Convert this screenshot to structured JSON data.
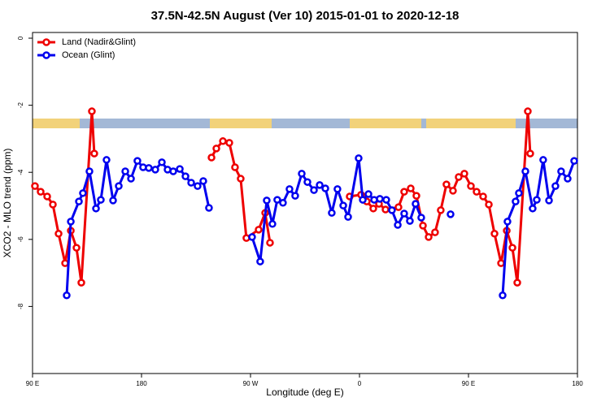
{
  "chart_data": {
    "type": "line",
    "title": "37.5N-42.5N August (Ver 10)   2015-01-01 to 2020-12-18",
    "xlabel": "Longitude (deg E)",
    "ylabel": "XCO2 - MLO trend (ppm)",
    "xlim": [
      90,
      540
    ],
    "ylim": [
      -10,
      0.17
    ],
    "xticks": [
      {
        "value": 90,
        "label": "90 E"
      },
      180,
      {
        "value": 270,
        "label": "90 W"
      },
      {
        "value": 360,
        "label": "0"
      },
      {
        "value": 450,
        "label": "90 E"
      },
      {
        "value": 540,
        "label": "180"
      }
    ],
    "yticks": [
      0,
      -2,
      -4,
      -6,
      -8
    ],
    "grid": false,
    "legend": "top-left",
    "series": [
      {
        "name": "Land (Nadir&Glint)",
        "color": "#ee0000",
        "x": [
          92.0,
          96.7,
          102.1,
          106.8,
          111.5,
          116.9,
          121.6,
          126.3,
          130.3,
          139.0,
          141.0,
          null,
          237.8,
          241.8,
          247.2,
          252.5,
          257.2,
          261.9,
          266.6,
          276.7,
          282.1,
          286.1,
          null,
          351.9,
          361.3,
          366.0,
          371.4,
          376.1,
          381.5,
          392.2,
          396.9,
          402.3,
          407.0,
          412.4,
          417.1,
          422.4,
          427.1,
          431.8,
          437.2,
          441.9,
          446.6,
          452.0,
          456.7,
          462.1,
          466.8,
          471.5,
          476.9,
          481.6,
          486.3,
          490.3,
          499.0,
          501.0
        ],
        "values": [
          -4.41,
          -4.58,
          -4.72,
          -4.96,
          -5.83,
          -6.71,
          -5.74,
          -6.25,
          -7.29,
          -2.18,
          -3.44,
          null,
          -3.56,
          -3.29,
          -3.07,
          -3.12,
          -3.85,
          -4.19,
          -5.96,
          -5.71,
          -5.21,
          -6.1,
          null,
          -4.72,
          -4.67,
          -4.87,
          -5.08,
          -4.94,
          -5.11,
          -5.04,
          -4.58,
          -4.48,
          -4.7,
          -5.59,
          -5.93,
          -5.79,
          -5.13,
          -4.36,
          -4.55,
          -4.14,
          -4.04,
          -4.41,
          -4.58,
          -4.72,
          -4.96,
          -5.83,
          -6.71,
          -5.74,
          -6.25,
          -7.29,
          -2.18,
          -3.44
        ]
      },
      {
        "name": "Ocean (Glint)",
        "color": "#0000ee",
        "x": [
          118.2,
          121.6,
          128.3,
          131.6,
          137.0,
          142.4,
          146.4,
          151.1,
          156.5,
          161.2,
          166.6,
          171.3,
          176.6,
          181.3,
          186.0,
          191.4,
          196.8,
          201.5,
          206.2,
          211.6,
          216.3,
          221.0,
          226.3,
          231.0,
          235.7,
          null,
          271.3,
          278.0,
          283.4,
          288.1,
          292.1,
          296.8,
          302.2,
          306.9,
          312.3,
          317.0,
          322.4,
          327.1,
          331.8,
          337.1,
          341.8,
          346.6,
          350.6,
          359.3,
          362.7,
          367.4,
          372.1,
          376.8,
          382.1,
          386.8,
          391.6,
          396.9,
          401.6,
          406.3,
          411.0,
          null,
          435.2,
          null,
          478.2,
          482.2,
          488.9,
          491.6,
          497.0,
          503.0,
          506.4,
          511.7,
          516.5,
          521.8,
          526.5,
          531.9,
          537.3
        ],
        "values": [
          -7.67,
          -5.47,
          -4.87,
          -4.62,
          -3.97,
          -5.08,
          -4.82,
          -3.63,
          -4.84,
          -4.41,
          -3.97,
          -4.19,
          -3.66,
          -3.85,
          -3.87,
          -3.92,
          -3.7,
          -3.92,
          -3.97,
          -3.9,
          -4.12,
          -4.31,
          -4.41,
          -4.26,
          -5.06,
          null,
          -5.93,
          -6.66,
          -4.84,
          -5.54,
          -4.82,
          -4.91,
          -4.5,
          -4.7,
          -4.04,
          -4.29,
          -4.53,
          -4.38,
          -4.48,
          -5.21,
          -4.5,
          -4.99,
          -5.33,
          -3.58,
          -4.82,
          -4.65,
          -4.82,
          -4.79,
          -4.82,
          -5.13,
          -5.57,
          -5.23,
          -5.45,
          -4.94,
          -5.35,
          null,
          -5.25,
          null,
          -7.67,
          -5.47,
          -4.87,
          -4.62,
          -3.97,
          -5.08,
          -4.82,
          -3.63,
          -4.84,
          -4.41,
          -3.97,
          -4.19,
          -3.66
        ]
      }
    ]
  }
}
